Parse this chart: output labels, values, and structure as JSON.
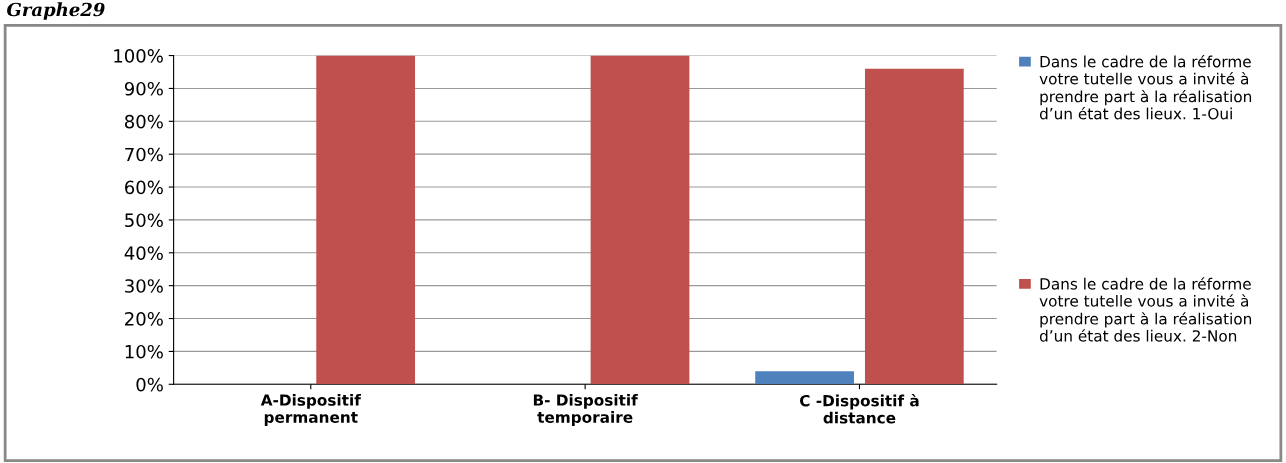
{
  "chart_data": {
    "type": "bar",
    "title": "Graphe29",
    "categories": [
      "A-Dispositif\npermanent",
      "B- Dispositif\ntemporaire",
      "C -Dispositif à\ndistance"
    ],
    "series": [
      {
        "name": "Dans le cadre de la réforme votre tutelle vous a invité à prendre part à la réalisation d’un état des lieux. 1-Oui",
        "color": "#4f81bd",
        "values": [
          0,
          0,
          4
        ]
      },
      {
        "name": "Dans le cadre de la réforme votre tutelle vous a invité à prendre part à la réalisation d’un état des lieux. 2-Non",
        "color": "#c0504d",
        "values": [
          100,
          100,
          96
        ]
      }
    ],
    "ylim": [
      0,
      100
    ],
    "yticks": [
      {
        "value": 0,
        "label": "0%"
      },
      {
        "value": 10,
        "label": "10%"
      },
      {
        "value": 20,
        "label": "20%"
      },
      {
        "value": 30,
        "label": "30%"
      },
      {
        "value": 40,
        "label": "40%"
      },
      {
        "value": 50,
        "label": "50%"
      },
      {
        "value": 60,
        "label": "60%"
      },
      {
        "value": 70,
        "label": "70%"
      },
      {
        "value": 80,
        "label": "80%"
      },
      {
        "value": 90,
        "label": "90%"
      },
      {
        "value": 100,
        "label": "100%"
      }
    ],
    "grid": "y",
    "legend": "right"
  }
}
